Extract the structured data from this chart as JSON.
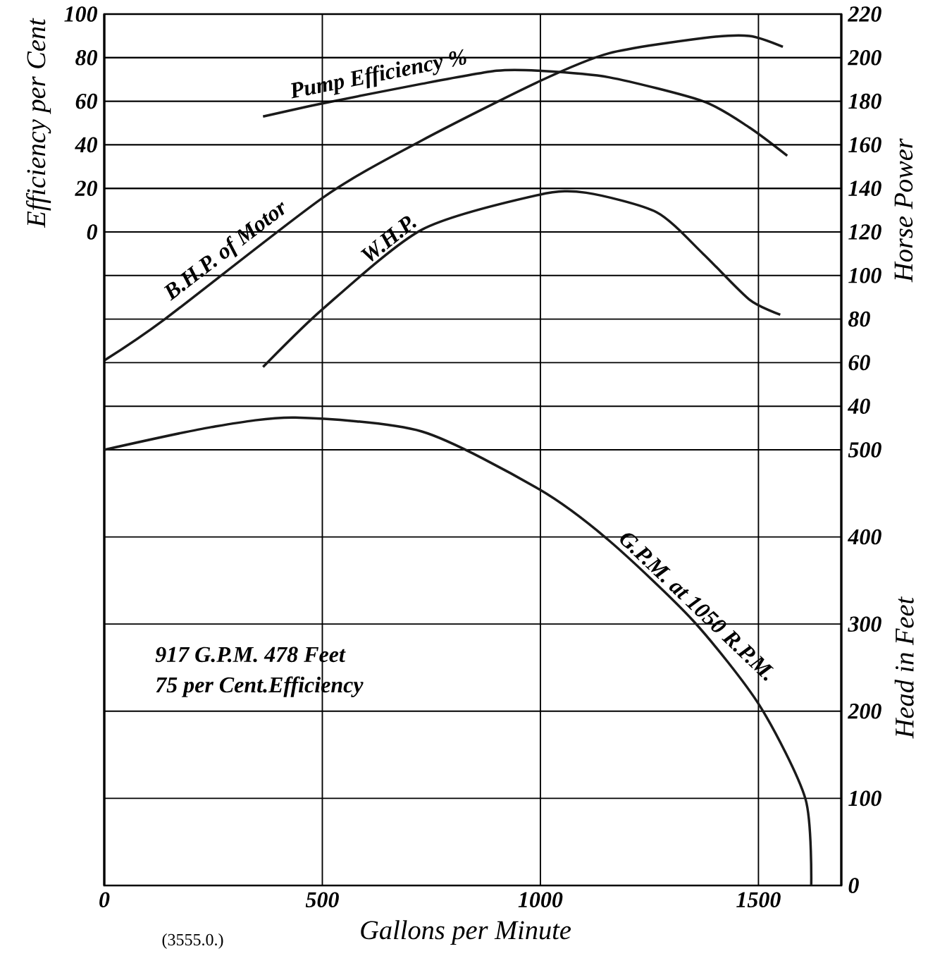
{
  "chart_data": {
    "type": "line",
    "xlabel": "Gallons per Minute",
    "ylabel": "Efficiency per Cent",
    "y2label": "Horse Power",
    "y3label": "Head in Feet",
    "xlim": [
      0,
      1690
    ],
    "xticks": [
      0,
      500,
      1000,
      1500
    ],
    "ylim": [
      -300,
      100
    ],
    "yticks": [
      0,
      20,
      40,
      60,
      80,
      100
    ],
    "y2lim": [
      -180,
      220
    ],
    "y2ticks": [
      40,
      60,
      80,
      100,
      120,
      140,
      160,
      180,
      200,
      220
    ],
    "y3lim": [
      0,
      1000
    ],
    "y3ticks": [
      0,
      100,
      200,
      300,
      400,
      500
    ],
    "grid": true,
    "annotations": [
      "917 G.P.M. 478 Feet",
      "75 per Cent.Efficiency",
      "(3555.0.)"
    ],
    "series": [
      {
        "name": "Pump Efficiency %",
        "color": "#1a1a1a",
        "x": [
          364,
          500,
          728,
          900,
          996,
          1157,
          1373,
          1479,
          1566
        ],
        "values": [
          53,
          59,
          68,
          74,
          74,
          71,
          60,
          48,
          35
        ]
      },
      {
        "name": "B.H.P. of Motor",
        "color": "#1a1a1a",
        "axis": "y2",
        "x": [
          0,
          139,
          503,
          728,
          996,
          1157,
          1373,
          1479,
          1556
        ],
        "values": [
          61,
          80,
          136,
          162,
          189,
          202,
          209,
          210,
          205
        ]
      },
      {
        "name": "W.H.P.",
        "color": "#1a1a1a",
        "axis": "y2",
        "x": [
          364,
          503,
          728,
          996,
          1105,
          1267,
          1373,
          1479,
          1550
        ],
        "values": [
          58,
          85,
          121,
          137,
          138,
          129,
          110,
          89,
          82
        ]
      },
      {
        "name": "G.P.M. at 1050 R.P.M.",
        "color": "#1a1a1a",
        "axis": "y3",
        "x": [
          0,
          245,
          438,
          728,
          996,
          1157,
          1350,
          1502,
          1608,
          1621
        ],
        "values": [
          500,
          526,
          537,
          521,
          455,
          396,
          304,
          207,
          99,
          0
        ]
      }
    ]
  }
}
